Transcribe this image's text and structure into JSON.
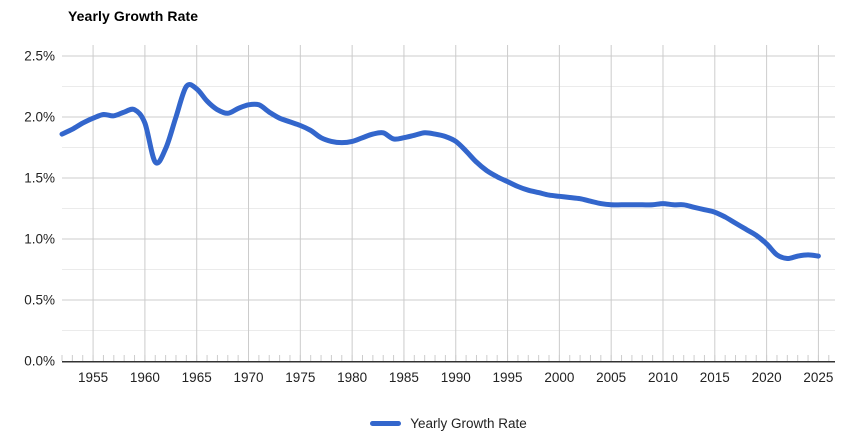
{
  "title": "Yearly Growth Rate",
  "legend": {
    "label": "Yearly Growth Rate"
  },
  "colors": {
    "line": "#3366CC",
    "grid_major": "#cccccc",
    "grid_minor": "#ebebeb",
    "axis": "#333333",
    "tick": "#cccccc",
    "label_text": "#222222",
    "background": "#ffffff"
  },
  "chart_data": {
    "type": "line",
    "title": "Yearly Growth Rate",
    "xlabel": "",
    "ylabel": "",
    "grid": true,
    "legend_position": "bottom",
    "xlim": [
      1952,
      2026.6
    ],
    "ylim": [
      0,
      2.59
    ],
    "x_ticks": [
      {
        "value": 1955,
        "label": "1955"
      },
      {
        "value": 1960,
        "label": "1960"
      },
      {
        "value": 1965,
        "label": "1965"
      },
      {
        "value": 1970,
        "label": "1970"
      },
      {
        "value": 1975,
        "label": "1975"
      },
      {
        "value": 1980,
        "label": "1980"
      },
      {
        "value": 1985,
        "label": "1985"
      },
      {
        "value": 1990,
        "label": "1990"
      },
      {
        "value": 1995,
        "label": "1995"
      },
      {
        "value": 2000,
        "label": "2000"
      },
      {
        "value": 2005,
        "label": "2005"
      },
      {
        "value": 2010,
        "label": "2010"
      },
      {
        "value": 2015,
        "label": "2015"
      },
      {
        "value": 2020,
        "label": "2020"
      },
      {
        "value": 2025,
        "label": "2025"
      }
    ],
    "y_ticks": [
      {
        "value": 0.0,
        "label": "0.0%"
      },
      {
        "value": 0.5,
        "label": "0.5%"
      },
      {
        "value": 1.0,
        "label": "1.0%"
      },
      {
        "value": 1.5,
        "label": "1.5%"
      },
      {
        "value": 2.0,
        "label": "2.0%"
      },
      {
        "value": 2.5,
        "label": "2.5%"
      }
    ],
    "y_minor_ticks": [
      0.25,
      0.75,
      1.25,
      1.75,
      2.25
    ],
    "series": [
      {
        "name": "Yearly Growth Rate",
        "color": "#3366CC",
        "x": [
          1952,
          1953,
          1954,
          1955,
          1956,
          1957,
          1958,
          1959,
          1960,
          1961,
          1962,
          1963,
          1964,
          1965,
          1966,
          1967,
          1968,
          1969,
          1970,
          1971,
          1972,
          1973,
          1974,
          1975,
          1976,
          1977,
          1978,
          1979,
          1980,
          1981,
          1982,
          1983,
          1984,
          1985,
          1986,
          1987,
          1988,
          1989,
          1990,
          1991,
          1992,
          1993,
          1994,
          1995,
          1996,
          1997,
          1998,
          1999,
          2000,
          2001,
          2002,
          2003,
          2004,
          2005,
          2006,
          2007,
          2008,
          2009,
          2010,
          2011,
          2012,
          2013,
          2014,
          2015,
          2016,
          2017,
          2018,
          2019,
          2020,
          2021,
          2022,
          2023,
          2024,
          2025
        ],
        "values": [
          1.86,
          1.9,
          1.95,
          1.99,
          2.02,
          2.01,
          2.04,
          2.06,
          1.95,
          1.63,
          1.74,
          2.0,
          2.25,
          2.23,
          2.13,
          2.06,
          2.03,
          2.07,
          2.1,
          2.1,
          2.04,
          1.99,
          1.96,
          1.93,
          1.89,
          1.83,
          1.8,
          1.79,
          1.8,
          1.83,
          1.86,
          1.87,
          1.82,
          1.83,
          1.85,
          1.87,
          1.86,
          1.84,
          1.8,
          1.72,
          1.63,
          1.56,
          1.51,
          1.47,
          1.43,
          1.4,
          1.38,
          1.36,
          1.35,
          1.34,
          1.33,
          1.31,
          1.29,
          1.28,
          1.28,
          1.28,
          1.28,
          1.28,
          1.29,
          1.28,
          1.28,
          1.26,
          1.24,
          1.22,
          1.18,
          1.13,
          1.08,
          1.03,
          0.96,
          0.87,
          0.84,
          0.86,
          0.87,
          0.86
        ]
      }
    ]
  }
}
